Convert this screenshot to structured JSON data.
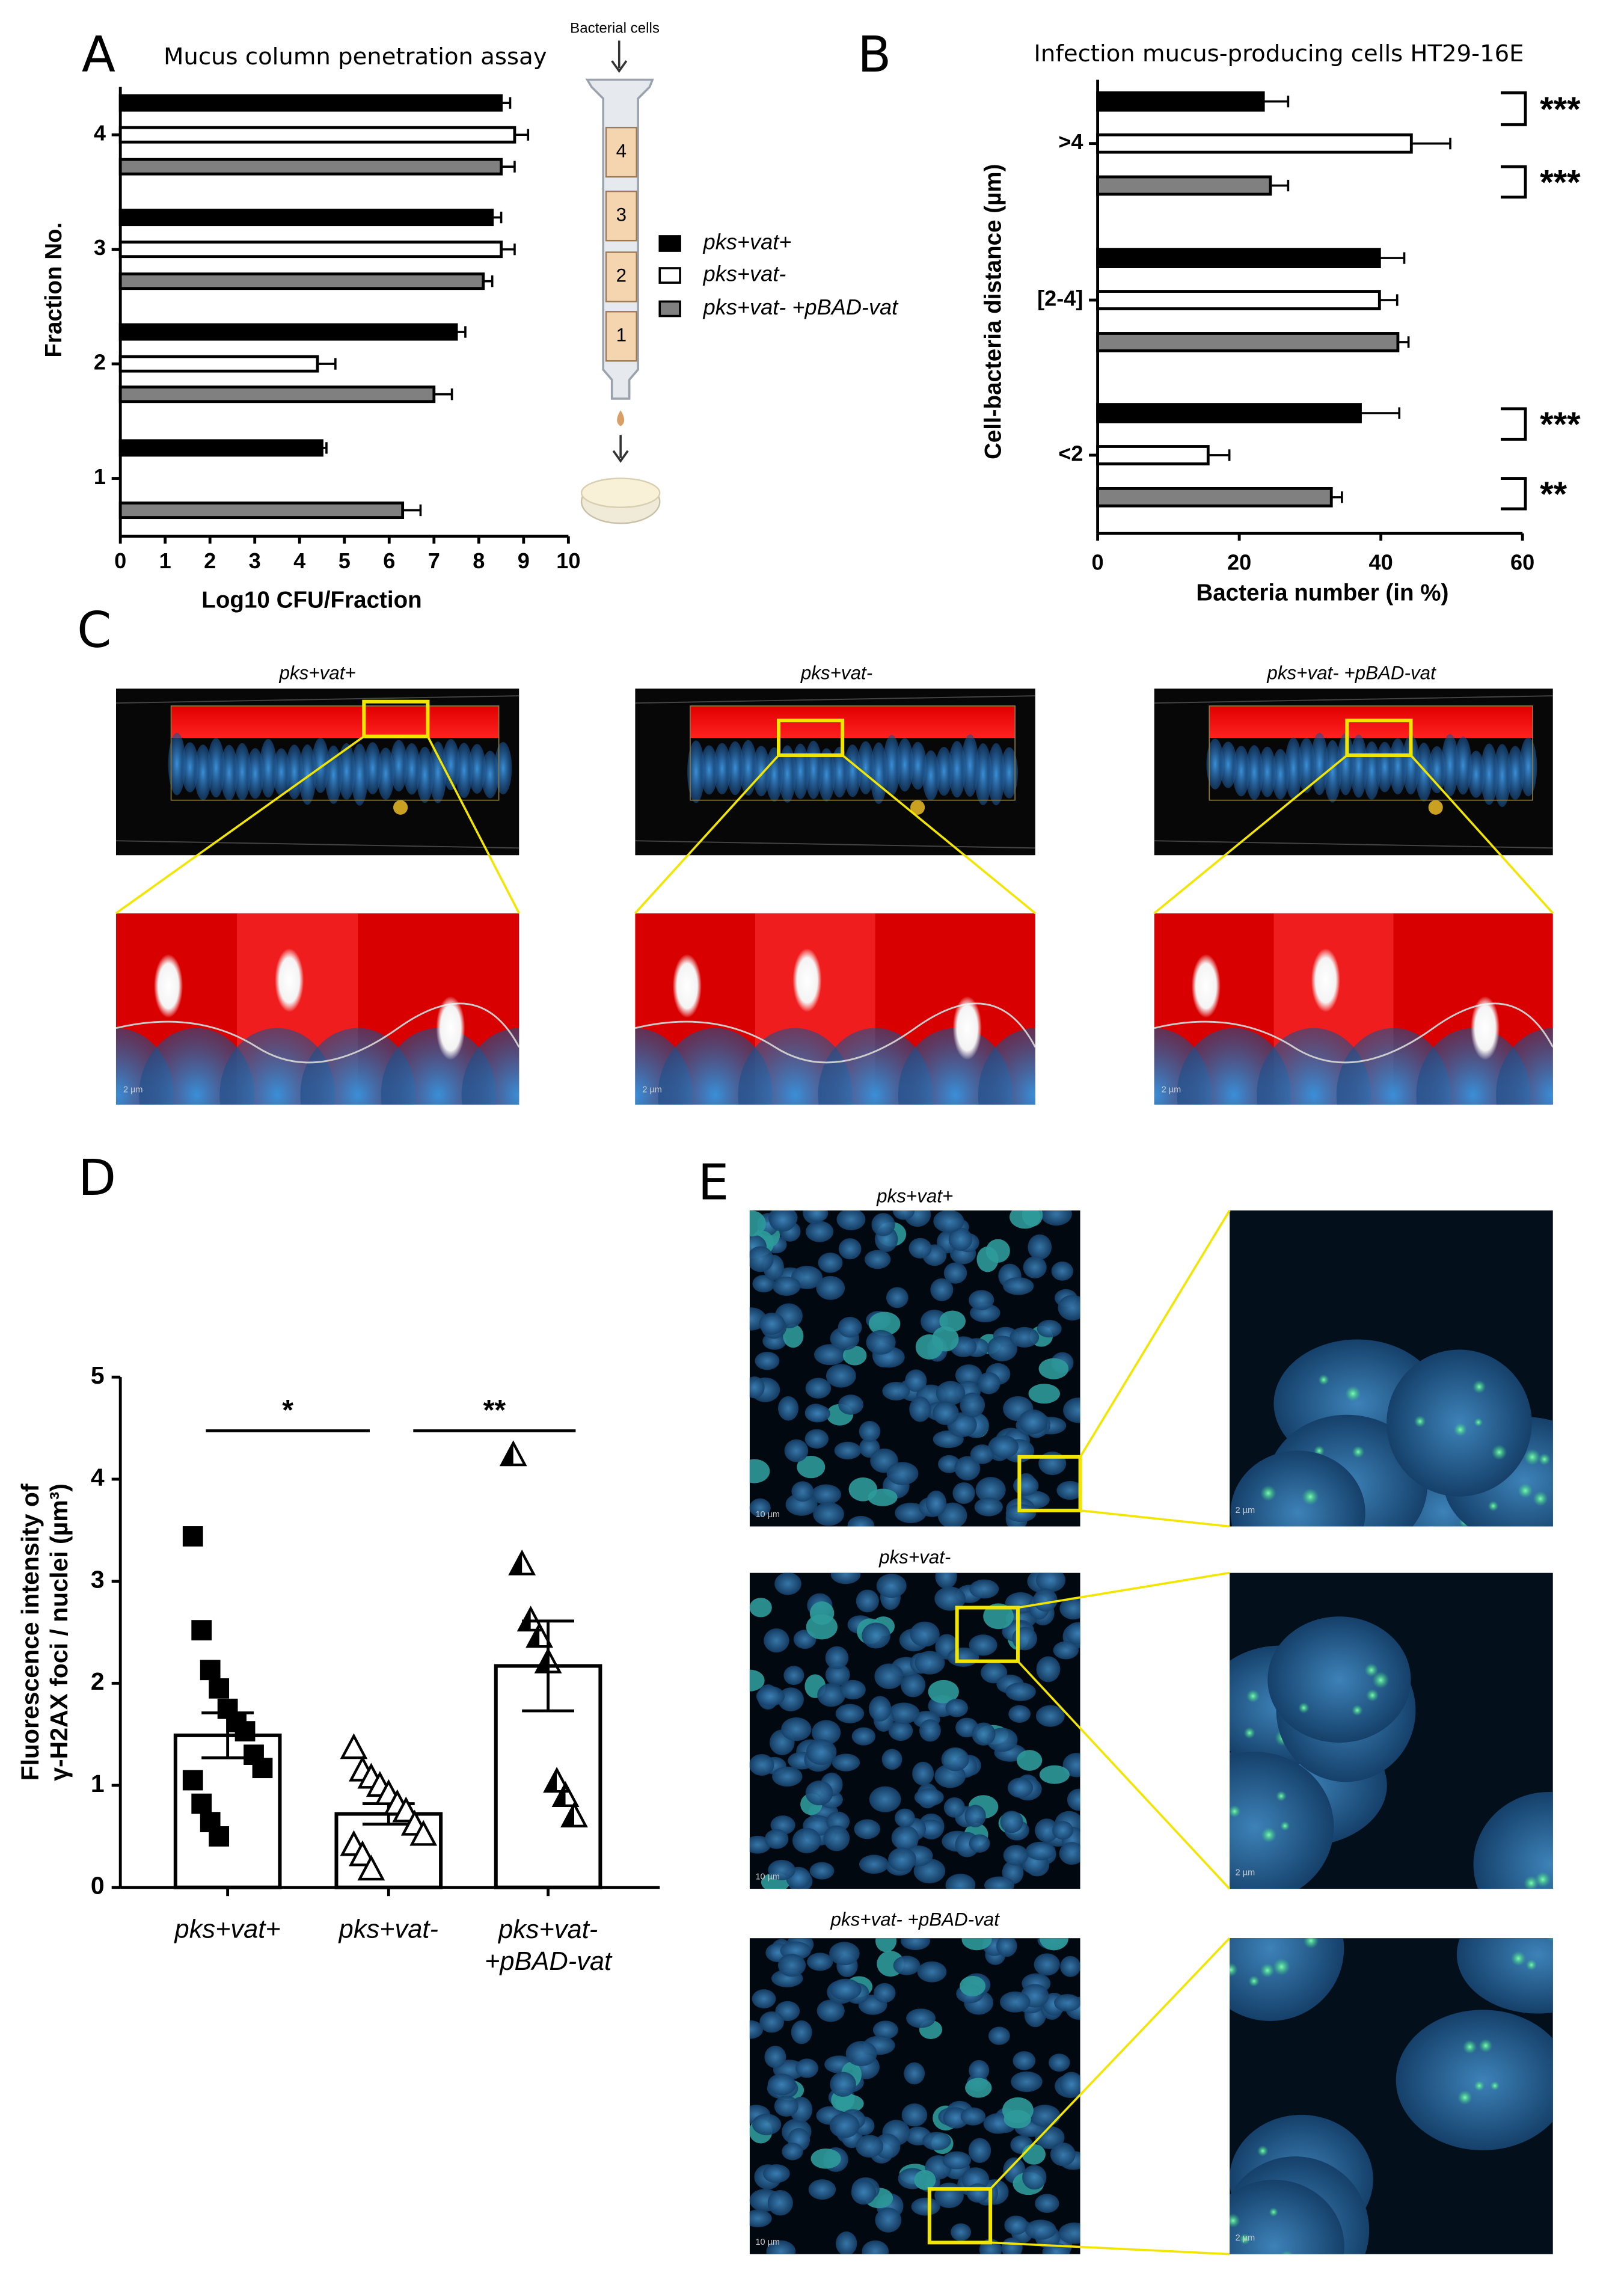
{
  "chart_data": [
    {
      "type": "hbar",
      "panel": "A",
      "title": "Mucus column penetration assay",
      "xlabel": "Log10 CFU/Fraction",
      "ylabel": "Fraction No.",
      "categories": [
        "1",
        "2",
        "3",
        "4"
      ],
      "series": [
        {
          "name": "pks+vat+",
          "color": "#000000",
          "values": [
            4.5,
            7.5,
            8.3,
            8.5
          ],
          "errors": [
            0.1,
            0.2,
            0.2,
            0.2
          ]
        },
        {
          "name": "pks+vat-",
          "color": "#ffffff",
          "values": [
            null,
            4.4,
            8.5,
            8.8
          ],
          "errors": [
            null,
            0.4,
            0.3,
            0.3
          ]
        },
        {
          "name": "pks+vat- +pBAD-vat",
          "color": "#808080",
          "values": [
            6.3,
            7.0,
            8.1,
            8.5
          ],
          "errors": [
            0.4,
            0.4,
            0.2,
            0.3
          ]
        }
      ],
      "xlim": [
        0,
        10
      ],
      "xticks": [
        0,
        1,
        2,
        3,
        4,
        5,
        6,
        7,
        8,
        9,
        10
      ],
      "legend": "right"
    },
    {
      "type": "hbar",
      "panel": "B",
      "title": "Infection mucus-producing cells HT29-16E",
      "xlabel": "Bacteria number (in %)",
      "ylabel": "Cell-bacteria distance (µm)",
      "categories": [
        "<2",
        "[2-4]",
        ">4"
      ],
      "series": [
        {
          "color": "#000000",
          "values": [
            37.1,
            39.8,
            23.4
          ],
          "errors": [
            5.5,
            3.5,
            3.5
          ]
        },
        {
          "color": "#ffffff",
          "values": [
            15.6,
            39.8,
            44.3
          ],
          "errors": [
            3.0,
            2.5,
            5.5
          ]
        },
        {
          "color": "#808080",
          "values": [
            33.0,
            42.4,
            24.4
          ],
          "errors": [
            1.5,
            1.5,
            2.5
          ]
        }
      ],
      "xlim": [
        0,
        60
      ],
      "xticks": [
        0,
        20,
        40,
        60
      ],
      "annotations": [
        "***",
        "***",
        "***",
        "**"
      ]
    },
    {
      "type": "barscatter",
      "panel": "D",
      "ylabel": [
        "Fluorescence intensity of",
        "γ-H2AX foci / nuclei (µm³)"
      ],
      "categories": [
        "pks+vat+",
        "pks+vat-",
        "pks+vat- +pBAD-vat"
      ],
      "values": [
        1.49,
        0.72,
        2.17
      ],
      "errors": [
        0.22,
        0.1,
        0.44
      ],
      "points": [
        [
          3.44,
          2.52,
          2.13,
          1.95,
          1.75,
          1.62,
          1.53,
          1.3,
          1.17,
          1.05,
          0.82,
          0.64,
          0.5
        ],
        [
          1.37,
          1.15,
          1.08,
          1.0,
          0.92,
          0.82,
          0.75,
          0.62,
          0.52,
          0.42,
          0.32,
          0.18
        ],
        [
          4.24,
          3.17,
          2.62,
          2.46,
          2.21,
          1.04,
          0.9,
          0.7
        ]
      ],
      "ylim": [
        0,
        5
      ],
      "yticks": [
        0,
        1,
        2,
        3,
        4,
        5
      ],
      "annotations": [
        "*",
        "**"
      ]
    }
  ],
  "diagram": {
    "label": "Bacterial cells",
    "fractions": [
      "4",
      "3",
      "2",
      "1"
    ]
  },
  "panel_c": {
    "panel": "C",
    "labels": [
      "pks+vat+",
      "pks+vat-",
      "pks+vat- +pBAD-vat"
    ]
  },
  "panel_e": {
    "panel": "E",
    "labels": [
      "pks+vat+",
      "pks+vat-",
      "pks+vat- +pBAD-vat"
    ]
  },
  "scale_bars": [
    "2 µm",
    "10 µm"
  ]
}
